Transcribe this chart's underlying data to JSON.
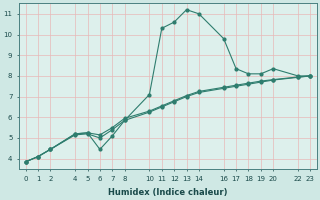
{
  "xlabel": "Humidex (Indice chaleur)",
  "background_color": "#cfe8e4",
  "grid_color": "#e8b8b8",
  "line_color": "#2e7d6e",
  "bg_axes": "#ddf0ec",
  "x_ticks": [
    0,
    1,
    2,
    4,
    5,
    6,
    7,
    8,
    10,
    11,
    12,
    13,
    14,
    16,
    17,
    18,
    19,
    20,
    22,
    23
  ],
  "xlim": [
    -0.5,
    23.5
  ],
  "ylim": [
    3.5,
    11.5
  ],
  "y_ticks": [
    4,
    5,
    6,
    7,
    8,
    9,
    10,
    11
  ],
  "line1_x": [
    0,
    1,
    2,
    4,
    5,
    6,
    7,
    8,
    10,
    11,
    12,
    13,
    14,
    16,
    17,
    18,
    19,
    20,
    22,
    23
  ],
  "line1_y": [
    3.85,
    4.1,
    4.45,
    5.2,
    5.25,
    4.45,
    5.1,
    5.85,
    7.1,
    10.3,
    10.6,
    11.2,
    11.0,
    9.8,
    8.35,
    8.1,
    8.1,
    8.35,
    8.0,
    8.0
  ],
  "line2_x": [
    0,
    1,
    2,
    4,
    5,
    6,
    7,
    8,
    10,
    11,
    12,
    13,
    14,
    16,
    17,
    18,
    19,
    20,
    22,
    23
  ],
  "line2_y": [
    3.85,
    4.1,
    4.45,
    5.2,
    5.25,
    5.15,
    5.5,
    5.95,
    6.3,
    6.55,
    6.8,
    7.05,
    7.25,
    7.45,
    7.55,
    7.65,
    7.75,
    7.82,
    7.95,
    8.0
  ],
  "line3_x": [
    0,
    1,
    2,
    4,
    5,
    6,
    7,
    8,
    10,
    11,
    12,
    13,
    14,
    16,
    17,
    18,
    19,
    20,
    22,
    23
  ],
  "line3_y": [
    3.85,
    4.1,
    4.45,
    5.15,
    5.2,
    5.0,
    5.4,
    5.85,
    6.25,
    6.5,
    6.75,
    7.0,
    7.2,
    7.4,
    7.5,
    7.6,
    7.7,
    7.8,
    7.93,
    8.0
  ]
}
